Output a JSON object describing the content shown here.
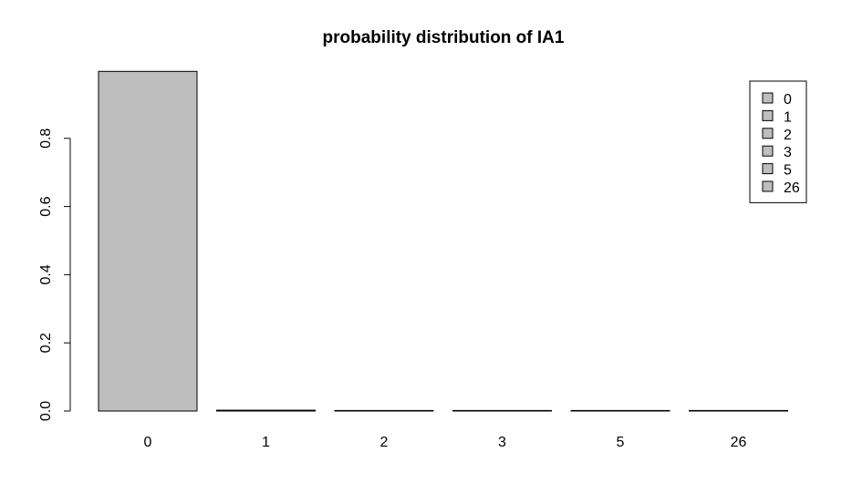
{
  "chart_data": {
    "type": "bar",
    "title": "probability distribution of  IA1",
    "categories": [
      "0",
      "1",
      "2",
      "3",
      "5",
      "26"
    ],
    "values": [
      0.9965,
      0.0025,
      0.0004,
      0.0003,
      0.0002,
      0.0001
    ],
    "xlabel": "",
    "ylabel": "",
    "ylim": [
      0,
      1.0
    ],
    "yticks": [
      "0.0",
      "0.2",
      "0.4",
      "0.6",
      "0.8"
    ],
    "ytick_values": [
      0,
      0.2,
      0.4,
      0.6,
      0.8
    ],
    "grid": false,
    "bar_color": "#bebebe",
    "legend": {
      "placement": "top-right",
      "entries": [
        "0",
        "1",
        "2",
        "3",
        "5",
        "26"
      ]
    }
  }
}
